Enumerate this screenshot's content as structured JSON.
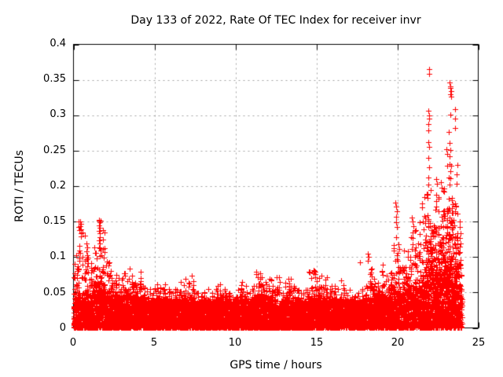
{
  "chart_data": {
    "type": "scatter",
    "title": "Day 133 of 2022, Rate Of TEC Index for receiver invr",
    "xlabel": "GPS time / hours",
    "ylabel": "ROTI / TECUs",
    "xlim": [
      0,
      25
    ],
    "ylim": [
      0,
      0.4
    ],
    "xtick_values": [
      0,
      5,
      10,
      15,
      20,
      25
    ],
    "ytick_values": [
      0,
      0.05,
      0.1,
      0.15,
      0.2,
      0.25,
      0.3,
      0.35,
      0.4
    ],
    "xtick_labels": [
      "0",
      "5",
      "10",
      "15",
      "20",
      "25"
    ],
    "ytick_labels": [
      "0",
      "0.05",
      "0.1",
      "0.15",
      "0.2",
      "0.25",
      "0.3",
      "0.35",
      "0.4"
    ],
    "grid": true,
    "legend": "none",
    "marker": "plus",
    "marker_color": "#ff0000",
    "grid_color": "#a0a0a0",
    "axis_color": "#000000",
    "x_data_range_hours": [
      0,
      24
    ],
    "envelope_bin_hours": 0.25,
    "envelope_note": "per 15-min bin: [hour, top of dense mass TECU, top of spike column TECU] read from plot",
    "envelope": [
      [
        0.0,
        0.055,
        0.105
      ],
      [
        0.25,
        0.06,
        0.15
      ],
      [
        0.5,
        0.058,
        0.135
      ],
      [
        0.75,
        0.055,
        0.1
      ],
      [
        1.0,
        0.058,
        0.092
      ],
      [
        1.25,
        0.065,
        0.115
      ],
      [
        1.5,
        0.07,
        0.152
      ],
      [
        1.75,
        0.065,
        0.14
      ],
      [
        2.0,
        0.055,
        0.095
      ],
      [
        2.25,
        0.05,
        0.082
      ],
      [
        2.5,
        0.046,
        0.075
      ],
      [
        2.75,
        0.044,
        0.07
      ],
      [
        3.0,
        0.045,
        0.078
      ],
      [
        3.25,
        0.048,
        0.085
      ],
      [
        3.5,
        0.044,
        0.075
      ],
      [
        3.75,
        0.04,
        0.065
      ],
      [
        4.0,
        0.044,
        0.08
      ],
      [
        4.25,
        0.038,
        0.06
      ],
      [
        4.5,
        0.035,
        0.055
      ],
      [
        4.75,
        0.034,
        0.05
      ],
      [
        5.0,
        0.038,
        0.062
      ],
      [
        5.25,
        0.036,
        0.058
      ],
      [
        5.5,
        0.038,
        0.062
      ],
      [
        5.75,
        0.034,
        0.055
      ],
      [
        6.0,
        0.032,
        0.05
      ],
      [
        6.25,
        0.034,
        0.055
      ],
      [
        6.5,
        0.038,
        0.065
      ],
      [
        6.75,
        0.04,
        0.07
      ],
      [
        7.0,
        0.038,
        0.065
      ],
      [
        7.25,
        0.04,
        0.075
      ],
      [
        7.5,
        0.032,
        0.05
      ],
      [
        7.75,
        0.03,
        0.045
      ],
      [
        8.0,
        0.032,
        0.05
      ],
      [
        8.25,
        0.034,
        0.055
      ],
      [
        8.5,
        0.03,
        0.05
      ],
      [
        8.75,
        0.036,
        0.06
      ],
      [
        9.0,
        0.038,
        0.062
      ],
      [
        9.25,
        0.034,
        0.055
      ],
      [
        9.5,
        0.031,
        0.05
      ],
      [
        9.75,
        0.03,
        0.045
      ],
      [
        10.0,
        0.034,
        0.055
      ],
      [
        10.25,
        0.038,
        0.065
      ],
      [
        10.5,
        0.036,
        0.06
      ],
      [
        10.75,
        0.031,
        0.05
      ],
      [
        11.0,
        0.036,
        0.06
      ],
      [
        11.25,
        0.044,
        0.08
      ],
      [
        11.5,
        0.044,
        0.078
      ],
      [
        11.75,
        0.038,
        0.065
      ],
      [
        12.0,
        0.04,
        0.07
      ],
      [
        12.25,
        0.036,
        0.06
      ],
      [
        12.5,
        0.036,
        0.072
      ],
      [
        12.75,
        0.031,
        0.05
      ],
      [
        13.0,
        0.038,
        0.065
      ],
      [
        13.25,
        0.04,
        0.07
      ],
      [
        13.5,
        0.036,
        0.06
      ],
      [
        13.75,
        0.033,
        0.055
      ],
      [
        14.0,
        0.031,
        0.05
      ],
      [
        14.25,
        0.034,
        0.055
      ],
      [
        14.5,
        0.04,
        0.08
      ],
      [
        14.75,
        0.042,
        0.083
      ],
      [
        15.0,
        0.038,
        0.07
      ],
      [
        15.25,
        0.042,
        0.075
      ],
      [
        15.5,
        0.04,
        0.072
      ],
      [
        15.75,
        0.034,
        0.06
      ],
      [
        16.0,
        0.036,
        0.06
      ],
      [
        16.25,
        0.033,
        0.055
      ],
      [
        16.5,
        0.036,
        0.068
      ],
      [
        16.75,
        0.031,
        0.05
      ],
      [
        17.0,
        0.034,
        0.055
      ],
      [
        17.25,
        0.029,
        0.045
      ],
      [
        17.5,
        0.031,
        0.05
      ],
      [
        17.75,
        0.033,
        0.055
      ],
      [
        18.0,
        0.038,
        0.06
      ],
      [
        18.25,
        0.042,
        0.085
      ],
      [
        18.5,
        0.044,
        0.07
      ],
      [
        18.75,
        0.041,
        0.065
      ],
      [
        19.0,
        0.048,
        0.09
      ],
      [
        19.25,
        0.044,
        0.075
      ],
      [
        19.5,
        0.048,
        0.08
      ],
      [
        19.75,
        0.058,
        0.13
      ],
      [
        20.0,
        0.062,
        0.12
      ],
      [
        20.25,
        0.058,
        0.11
      ],
      [
        20.5,
        0.062,
        0.11
      ],
      [
        20.75,
        0.068,
        0.13
      ],
      [
        21.0,
        0.072,
        0.14
      ],
      [
        21.25,
        0.078,
        0.15
      ],
      [
        21.5,
        0.095,
        0.185
      ],
      [
        21.75,
        0.115,
        0.19
      ],
      [
        22.0,
        0.135,
        0.195
      ],
      [
        22.25,
        0.125,
        0.19
      ],
      [
        22.5,
        0.125,
        0.185
      ],
      [
        22.75,
        0.135,
        0.2
      ],
      [
        23.0,
        0.145,
        0.23
      ],
      [
        23.25,
        0.155,
        0.23
      ],
      [
        23.5,
        0.135,
        0.23
      ],
      [
        23.75,
        0.075,
        0.115
      ]
    ],
    "outlier_points": [
      [
        0.42,
        0.15
      ],
      [
        0.45,
        0.147
      ],
      [
        0.43,
        0.143
      ],
      [
        0.46,
        0.139
      ],
      [
        0.44,
        0.134
      ],
      [
        0.47,
        0.129
      ],
      [
        0.8,
        0.119
      ],
      [
        0.83,
        0.114
      ],
      [
        0.78,
        0.108
      ],
      [
        0.85,
        0.103
      ],
      [
        1.58,
        0.152
      ],
      [
        1.62,
        0.149
      ],
      [
        1.6,
        0.145
      ],
      [
        1.64,
        0.141
      ],
      [
        1.57,
        0.137
      ],
      [
        1.61,
        0.133
      ],
      [
        1.65,
        0.128
      ],
      [
        1.59,
        0.124
      ],
      [
        1.63,
        0.119
      ],
      [
        1.6,
        0.114
      ],
      [
        1.66,
        0.109
      ],
      [
        1.7,
        0.103
      ],
      [
        17.67,
        0.092
      ],
      [
        18.2,
        0.105
      ],
      [
        18.23,
        0.1
      ],
      [
        18.18,
        0.095
      ],
      [
        19.9,
        0.177
      ],
      [
        19.93,
        0.171
      ],
      [
        19.96,
        0.165
      ],
      [
        19.92,
        0.157
      ],
      [
        19.95,
        0.149
      ],
      [
        19.98,
        0.142
      ],
      [
        20.9,
        0.156
      ],
      [
        20.95,
        0.15
      ],
      [
        21.0,
        0.143
      ],
      [
        20.93,
        0.135
      ],
      [
        21.98,
        0.365
      ],
      [
        21.99,
        0.359
      ],
      [
        21.92,
        0.306
      ],
      [
        21.95,
        0.3
      ],
      [
        21.98,
        0.295
      ],
      [
        21.94,
        0.287
      ],
      [
        21.9,
        0.279
      ],
      [
        21.93,
        0.262
      ],
      [
        21.96,
        0.255
      ],
      [
        21.92,
        0.24
      ],
      [
        21.95,
        0.227
      ],
      [
        21.94,
        0.212
      ],
      [
        21.91,
        0.202
      ],
      [
        22.4,
        0.21
      ],
      [
        22.43,
        0.203
      ],
      [
        22.7,
        0.205
      ],
      [
        22.73,
        0.198
      ],
      [
        23.05,
        0.252
      ],
      [
        23.08,
        0.245
      ],
      [
        23.25,
        0.346
      ],
      [
        23.3,
        0.341
      ],
      [
        23.28,
        0.338
      ],
      [
        23.32,
        0.334
      ],
      [
        23.27,
        0.33
      ],
      [
        23.31,
        0.326
      ],
      [
        23.26,
        0.301
      ],
      [
        23.55,
        0.309
      ],
      [
        23.57,
        0.295
      ],
      [
        23.58,
        0.282
      ],
      [
        23.2,
        0.276
      ],
      [
        23.23,
        0.261
      ],
      [
        23.27,
        0.251
      ],
      [
        23.21,
        0.242
      ],
      [
        23.24,
        0.231
      ],
      [
        23.3,
        0.221
      ],
      [
        23.26,
        0.211
      ],
      [
        23.22,
        0.202
      ],
      [
        23.85,
        0.15
      ],
      [
        23.88,
        0.142
      ],
      [
        23.9,
        0.134
      ],
      [
        23.86,
        0.127
      ],
      [
        23.92,
        0.119
      ]
    ]
  }
}
